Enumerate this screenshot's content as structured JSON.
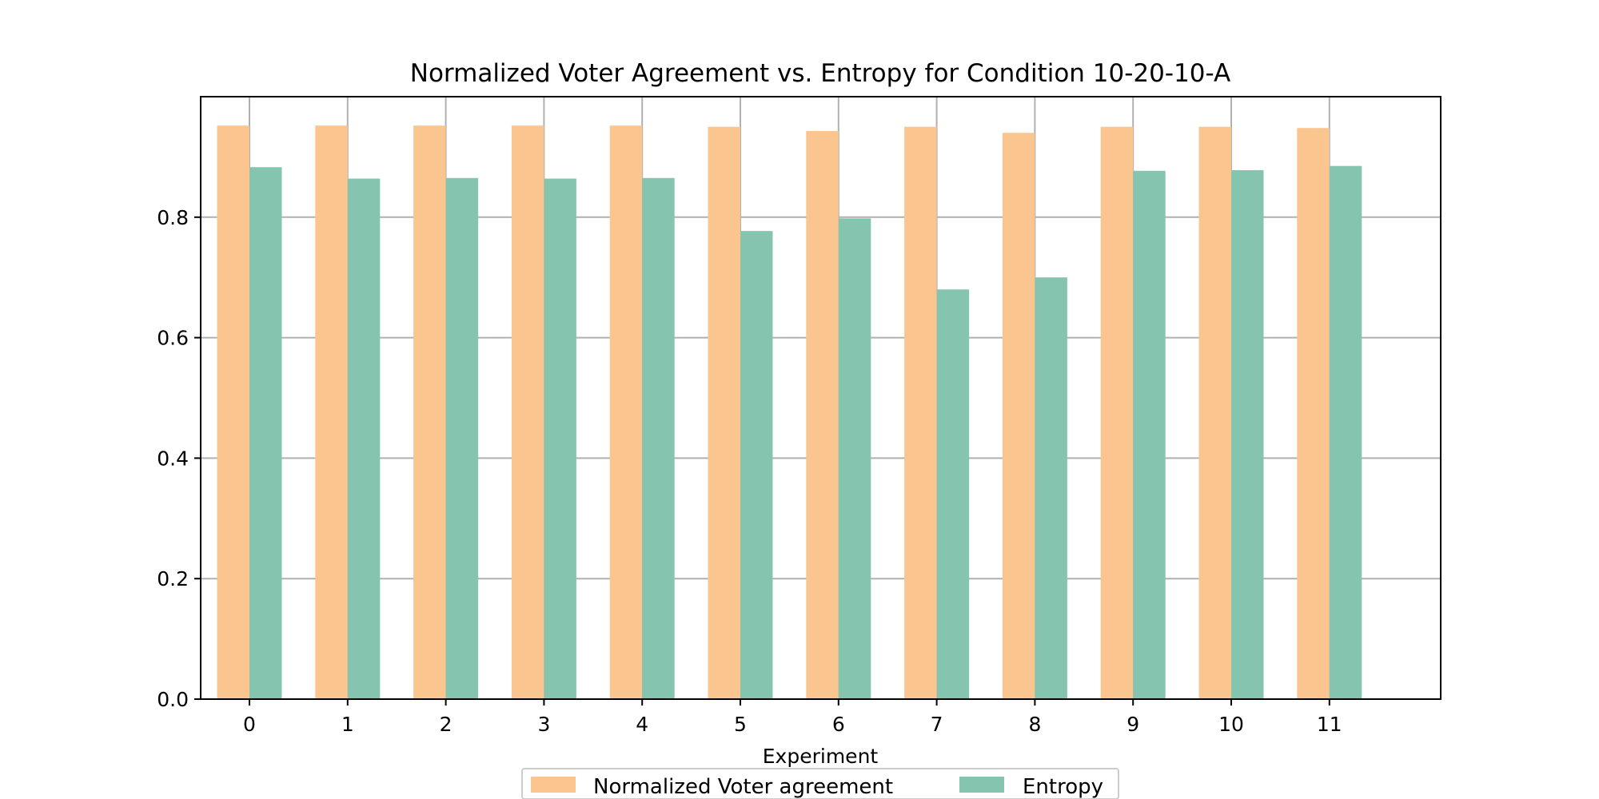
{
  "chart_data": {
    "type": "bar",
    "title": "Normalized Voter Agreement vs. Entropy for Condition 10-20-10-A",
    "xlabel": "Experiment",
    "ylabel": "",
    "categories": [
      "0",
      "1",
      "2",
      "3",
      "4",
      "5",
      "6",
      "7",
      "8",
      "9",
      "10",
      "11"
    ],
    "series": [
      {
        "name": "Normalized Voter agreement",
        "color": "#fbc58f",
        "values": [
          0.952,
          0.952,
          0.952,
          0.952,
          0.952,
          0.95,
          0.943,
          0.95,
          0.94,
          0.95,
          0.95,
          0.948
        ]
      },
      {
        "name": "Entropy",
        "color": "#85c4ae",
        "values": [
          0.883,
          0.864,
          0.865,
          0.864,
          0.865,
          0.777,
          0.798,
          0.68,
          0.7,
          0.877,
          0.878,
          0.885
        ]
      }
    ],
    "ylim": [
      0,
      1.0
    ],
    "yticks": [
      "0.0",
      "0.2",
      "0.4",
      "0.6",
      "0.8"
    ],
    "ytick_values": [
      0.0,
      0.2,
      0.4,
      0.6,
      0.8
    ],
    "grid": true,
    "legend_position": "bottom-center"
  }
}
